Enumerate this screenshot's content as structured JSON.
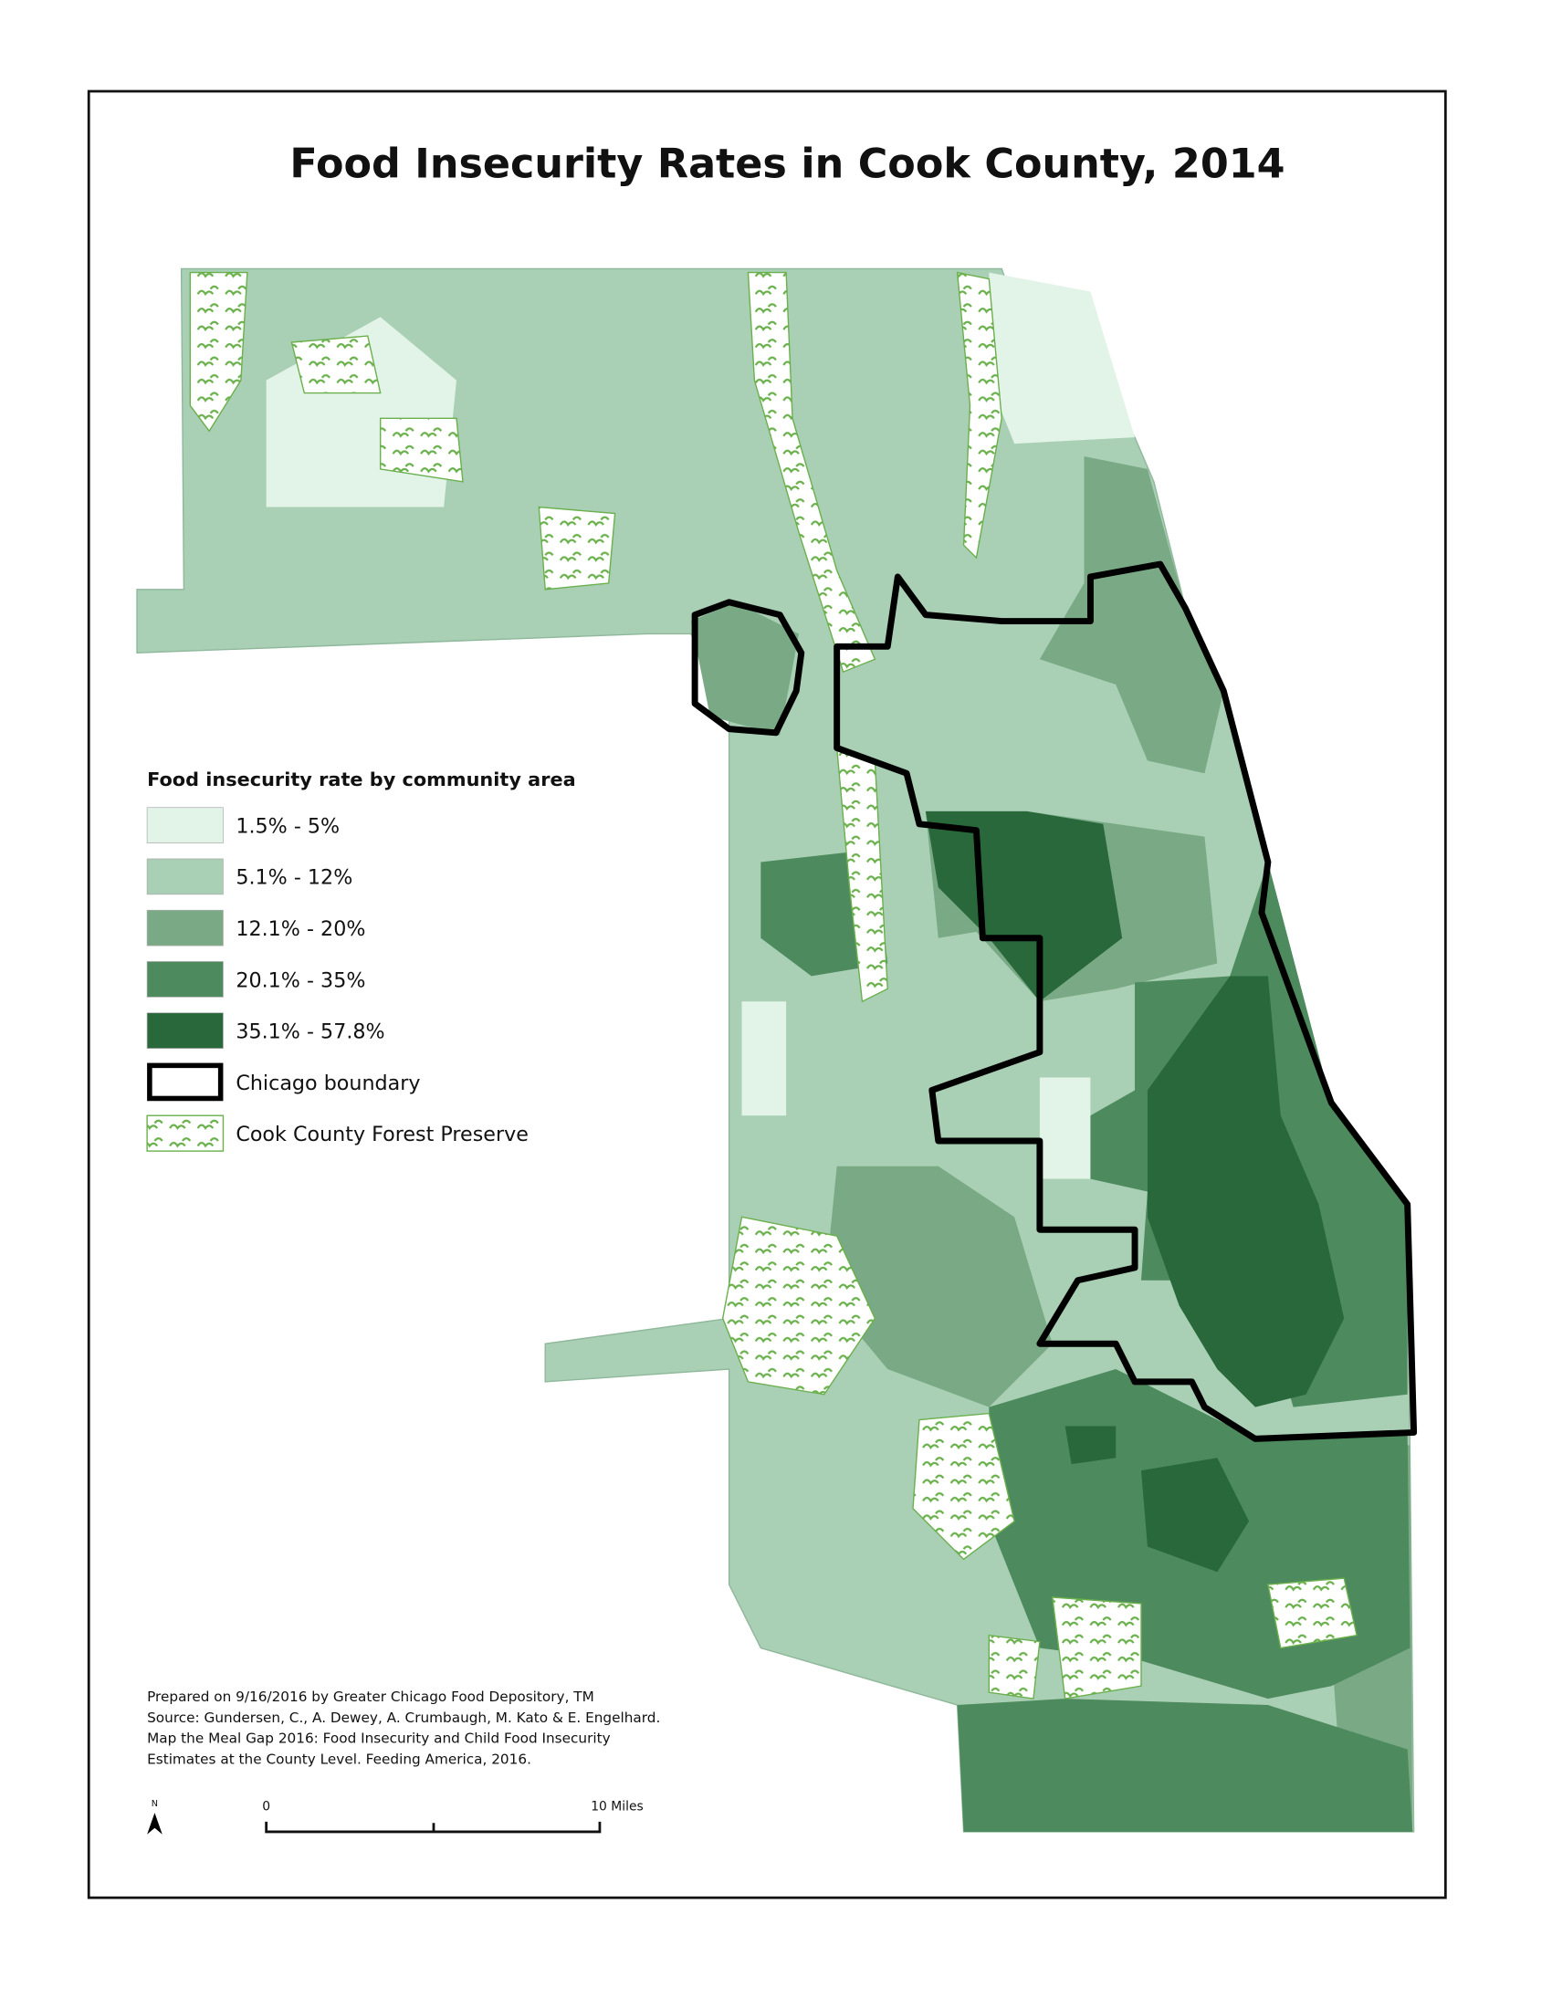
{
  "title": "Food Insecurity Rates in Cook County, 2014",
  "legend": {
    "title": "Food insecurity rate by community area",
    "items": [
      {
        "label": "1.5% - 5%",
        "color": "#e2f3e8"
      },
      {
        "label": "5.1% - 12%",
        "color": "#a9cfb4"
      },
      {
        "label": "12.1% - 20%",
        "color": "#7aaa85"
      },
      {
        "label": "20.1% - 35%",
        "color": "#4d8a5d"
      },
      {
        "label": "35.1% - 57.8%",
        "color": "#28683a"
      }
    ],
    "boundary": "Chicago boundary",
    "preserve": "Cook County Forest Preserve"
  },
  "credits": [
    "Prepared on 9/16/2016 by Greater Chicago Food Depository, TM",
    "Source: Gundersen, C., A. Dewey, A. Crumbaugh, M. Kato & E. Engelhard.",
    "Map the Meal Gap 2016: Food Insecurity and Child Food Insecurity",
    "Estimates at the County Level. Feeding America, 2016."
  ],
  "scale_bar": {
    "start": "0",
    "end": "10 Miles"
  },
  "north": "N"
}
